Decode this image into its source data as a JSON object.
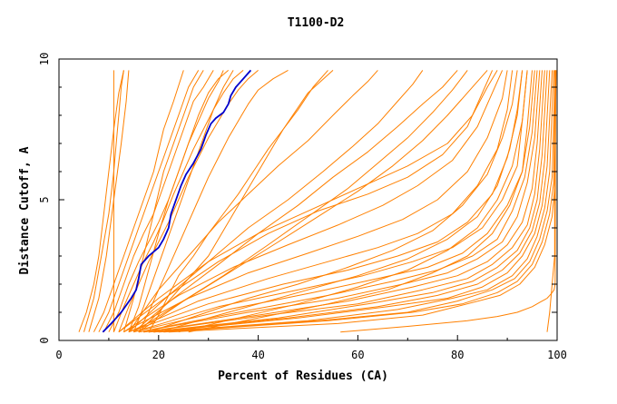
{
  "chart_data": {
    "type": "line",
    "title": "T1100-D2",
    "xlabel": "Percent of Residues (CA)",
    "ylabel": "Distance Cutoff, A",
    "xlim": [
      0,
      100
    ],
    "ylim": [
      0,
      10
    ],
    "x_ticks": [
      0,
      20,
      40,
      60,
      80,
      100
    ],
    "y_ticks": [
      0,
      5,
      10
    ],
    "grid": false,
    "legend": "none",
    "colors": {
      "models": "#ff8000",
      "highlight": "#0000cc"
    },
    "series": [
      {
        "highlight": true,
        "x": [
          8.8,
          10.5,
          12.5,
          14.5,
          15.5,
          16,
          16.5,
          18,
          20,
          21,
          22,
          22.5,
          23.5,
          24.5,
          25.5,
          27,
          28.5,
          29.5,
          30.5,
          31.5,
          33,
          34,
          34.5,
          35.5,
          36.5,
          37.5,
          38.5
        ],
        "y": [
          0.3,
          0.6,
          1.0,
          1.5,
          1.8,
          2.2,
          2.7,
          3.0,
          3.3,
          3.6,
          4.0,
          4.5,
          5.0,
          5.5,
          5.9,
          6.3,
          6.8,
          7.3,
          7.7,
          7.9,
          8.1,
          8.4,
          8.7,
          9.0,
          9.2,
          9.4,
          9.6
        ]
      },
      {
        "x": [
          11,
          11,
          11,
          11,
          11,
          11
        ],
        "y": [
          0.3,
          2,
          4,
          6,
          8,
          9.6
        ]
      },
      {
        "x": [
          4,
          5.5,
          7,
          8,
          9,
          10,
          11,
          12,
          13
        ],
        "y": [
          0.3,
          1.0,
          2.0,
          3.0,
          4.5,
          6.0,
          7.5,
          8.8,
          9.6
        ]
      },
      {
        "x": [
          5,
          7,
          8.5,
          10,
          11,
          11.5,
          12,
          12.5,
          13
        ],
        "y": [
          0.3,
          1.5,
          3.0,
          4.5,
          6.0,
          7.0,
          8.0,
          9.0,
          9.6
        ]
      },
      {
        "x": [
          6,
          8,
          9.5,
          11,
          12.5,
          13.5,
          14
        ],
        "y": [
          0.3,
          1.5,
          3.0,
          5.0,
          7.0,
          8.5,
          9.6
        ]
      },
      {
        "x": [
          7,
          9,
          11,
          13,
          15,
          17,
          19,
          21,
          23,
          25
        ],
        "y": [
          0.3,
          1.0,
          2.0,
          3.0,
          4.0,
          5.0,
          6.0,
          7.5,
          8.5,
          9.6
        ]
      },
      {
        "x": [
          8,
          10,
          12,
          14,
          16,
          18,
          20,
          22,
          24,
          26,
          28
        ],
        "y": [
          0.3,
          1.0,
          2.0,
          3.0,
          4.0,
          5.0,
          6.0,
          7.0,
          8.0,
          9.0,
          9.6
        ]
      },
      {
        "x": [
          9,
          11,
          13,
          15,
          17,
          19,
          21,
          23,
          25,
          27,
          29,
          31
        ],
        "y": [
          0.3,
          1.0,
          2.0,
          3.0,
          3.8,
          4.5,
          5.5,
          6.5,
          7.5,
          8.5,
          9.0,
          9.6
        ]
      },
      {
        "x": [
          10,
          12,
          14,
          16,
          18,
          20,
          22,
          24,
          26,
          28,
          30,
          32,
          34
        ],
        "y": [
          0.3,
          1.0,
          2.0,
          2.8,
          3.5,
          4.2,
          5.0,
          6.0,
          7.0,
          8.0,
          8.8,
          9.3,
          9.6
        ]
      },
      {
        "x": [
          11,
          13,
          15,
          17,
          19,
          21,
          23,
          25,
          27,
          29,
          31,
          33,
          35,
          37
        ],
        "y": [
          0.3,
          1.2,
          2.0,
          2.8,
          3.5,
          4.3,
          5.2,
          6.0,
          6.8,
          7.5,
          8.2,
          8.8,
          9.3,
          9.6
        ]
      },
      {
        "x": [
          12,
          14,
          16,
          18,
          20,
          22,
          24,
          26,
          28,
          30,
          32,
          34,
          36,
          38,
          40
        ],
        "y": [
          0.3,
          1.2,
          2.0,
          2.8,
          3.5,
          4.2,
          5.0,
          5.8,
          6.5,
          7.2,
          7.8,
          8.4,
          8.9,
          9.3,
          9.6
        ]
      },
      {
        "x": [
          13,
          15,
          17,
          19,
          21,
          23,
          25,
          27,
          29
        ],
        "y": [
          0.3,
          1.5,
          3.0,
          4.5,
          6.0,
          7.0,
          8.0,
          9.0,
          9.6
        ]
      },
      {
        "x": [
          14,
          16,
          18,
          20,
          22,
          24,
          26,
          28,
          30,
          32,
          33
        ],
        "y": [
          0.3,
          1.2,
          2.5,
          3.8,
          5.0,
          6.0,
          7.0,
          7.8,
          8.6,
          9.2,
          9.6
        ]
      },
      {
        "x": [
          15,
          17,
          19,
          21,
          23,
          25,
          27,
          29,
          31,
          33,
          35
        ],
        "y": [
          0.3,
          1.2,
          2.2,
          3.2,
          4.2,
          5.2,
          6.2,
          7.2,
          8.2,
          9.0,
          9.6
        ]
      },
      {
        "x": [
          16,
          18,
          20,
          22,
          24,
          26,
          28,
          30,
          32,
          34,
          36,
          38,
          40,
          43,
          46
        ],
        "y": [
          0.3,
          1.0,
          1.8,
          2.6,
          3.4,
          4.2,
          5.0,
          5.8,
          6.5,
          7.2,
          7.8,
          8.4,
          8.9,
          9.3,
          9.6
        ]
      },
      {
        "x": [
          18,
          20,
          22,
          24,
          27,
          30,
          33,
          36,
          39,
          42,
          45,
          48,
          51,
          54
        ],
        "y": [
          0.3,
          0.9,
          1.6,
          2.3,
          3.0,
          3.8,
          4.5,
          5.2,
          6.0,
          6.8,
          7.5,
          8.2,
          9.0,
          9.6
        ]
      },
      {
        "x": [
          16,
          20,
          25,
          30,
          35,
          40,
          45,
          50,
          55
        ],
        "y": [
          0.3,
          1.0,
          2.0,
          3.0,
          4.5,
          6.0,
          7.5,
          8.8,
          9.6
        ]
      },
      {
        "x": [
          12,
          20,
          30,
          40,
          50,
          60,
          70,
          78,
          83,
          86,
          88
        ],
        "y": [
          0.3,
          1.5,
          2.8,
          3.8,
          4.6,
          5.4,
          6.2,
          7.0,
          8.0,
          9.0,
          9.6
        ]
      },
      {
        "x": [
          12,
          22,
          32,
          42,
          52,
          62,
          70,
          77,
          82,
          85,
          87
        ],
        "y": [
          0.3,
          1.6,
          2.8,
          3.8,
          4.6,
          5.2,
          5.8,
          6.6,
          7.6,
          8.8,
          9.6
        ]
      },
      {
        "x": [
          13,
          24,
          35,
          46,
          56,
          65,
          72,
          79,
          84,
          87,
          89
        ],
        "y": [
          0.3,
          1.6,
          2.6,
          3.4,
          4.1,
          4.8,
          5.5,
          6.4,
          7.6,
          8.8,
          9.6
        ]
      },
      {
        "x": [
          13,
          26,
          38,
          50,
          60,
          69,
          76,
          82,
          86,
          89,
          90
        ],
        "y": [
          0.3,
          1.5,
          2.4,
          3.1,
          3.7,
          4.3,
          5.0,
          6.0,
          7.2,
          8.6,
          9.6
        ]
      },
      {
        "x": [
          14,
          28,
          42,
          54,
          64,
          72,
          79,
          84,
          88,
          90,
          91
        ],
        "y": [
          0.3,
          1.4,
          2.2,
          2.8,
          3.3,
          3.8,
          4.5,
          5.5,
          6.8,
          8.2,
          9.6
        ]
      },
      {
        "x": [
          14,
          30,
          45,
          58,
          68,
          76,
          82,
          87,
          90,
          92,
          93
        ],
        "y": [
          0.3,
          1.3,
          2.0,
          2.5,
          3.0,
          3.5,
          4.2,
          5.2,
          6.5,
          8.0,
          9.6
        ]
      },
      {
        "x": [
          15,
          32,
          48,
          61,
          71,
          79,
          85,
          89,
          92,
          93,
          94
        ],
        "y": [
          0.3,
          1.2,
          1.8,
          2.3,
          2.8,
          3.3,
          4.0,
          5.0,
          6.2,
          7.8,
          9.6
        ]
      },
      {
        "x": [
          15,
          34,
          51,
          64,
          74,
          81,
          86,
          90,
          93,
          94,
          95
        ],
        "y": [
          0.3,
          1.1,
          1.7,
          2.2,
          2.6,
          3.1,
          3.8,
          4.8,
          6.0,
          7.6,
          9.6
        ]
      },
      {
        "x": [
          16,
          36,
          54,
          67,
          76,
          83,
          88,
          91,
          93.5,
          95,
          96
        ],
        "y": [
          0.3,
          1.0,
          1.6,
          2.1,
          2.5,
          3.0,
          3.6,
          4.6,
          5.8,
          7.4,
          9.6
        ]
      },
      {
        "x": [
          16,
          38,
          56,
          69,
          78,
          84,
          89,
          92,
          94,
          95.5,
          96.5
        ],
        "y": [
          0.3,
          1.0,
          1.5,
          2.0,
          2.4,
          2.9,
          3.5,
          4.4,
          5.6,
          7.2,
          9.6
        ]
      },
      {
        "x": [
          17,
          40,
          58,
          71,
          80,
          86,
          90,
          93,
          95,
          96,
          97
        ],
        "y": [
          0.3,
          0.9,
          1.4,
          1.9,
          2.3,
          2.8,
          3.4,
          4.2,
          5.4,
          7.0,
          9.6
        ]
      },
      {
        "x": [
          17,
          42,
          60,
          73,
          82,
          87,
          91,
          94,
          95.5,
          96.5,
          97.5
        ],
        "y": [
          0.3,
          0.9,
          1.3,
          1.8,
          2.2,
          2.7,
          3.3,
          4.1,
          5.2,
          6.8,
          9.6
        ]
      },
      {
        "x": [
          18,
          44,
          62,
          75,
          83,
          88,
          92,
          94.5,
          96,
          97,
          98
        ],
        "y": [
          0.3,
          0.8,
          1.3,
          1.7,
          2.1,
          2.6,
          3.2,
          4.0,
          5.0,
          6.6,
          9.6
        ]
      },
      {
        "x": [
          18,
          46,
          64,
          76,
          84,
          89,
          92.5,
          95,
          96.5,
          97.5,
          98.5
        ],
        "y": [
          0.3,
          0.8,
          1.2,
          1.6,
          2.0,
          2.5,
          3.1,
          3.9,
          4.9,
          6.4,
          9.6
        ]
      },
      {
        "x": [
          19,
          48,
          66,
          78,
          85,
          90,
          93,
          95.5,
          97,
          98,
          99
        ],
        "y": [
          0.3,
          0.8,
          1.2,
          1.5,
          1.9,
          2.4,
          3.0,
          3.8,
          4.8,
          6.2,
          9.6
        ]
      },
      {
        "x": [
          19,
          50,
          68,
          79,
          86,
          91,
          94,
          96,
          97.5,
          98.5,
          99.3
        ],
        "y": [
          0.3,
          0.7,
          1.1,
          1.5,
          1.8,
          2.3,
          2.9,
          3.7,
          4.7,
          6.0,
          9.6
        ]
      },
      {
        "x": [
          20,
          52,
          70,
          80,
          87,
          91.5,
          94.5,
          96.5,
          98,
          99,
          99.6
        ],
        "y": [
          0.3,
          0.7,
          1.0,
          1.4,
          1.8,
          2.2,
          2.8,
          3.6,
          4.6,
          5.8,
          9.6
        ]
      },
      {
        "x": [
          21,
          54,
          71,
          81,
          88,
          92,
          95,
          97,
          98.5,
          99.3,
          99.7
        ],
        "y": [
          0.3,
          0.7,
          1.0,
          1.3,
          1.7,
          2.1,
          2.7,
          3.5,
          4.5,
          5.6,
          9.6
        ]
      },
      {
        "x": [
          22,
          56,
          73,
          82,
          88.5,
          92.5,
          95.5,
          97.5,
          99,
          99.5,
          99.8
        ],
        "y": [
          0.3,
          0.6,
          0.9,
          1.3,
          1.6,
          2.0,
          2.6,
          3.4,
          4.4,
          5.4,
          9.6
        ]
      },
      {
        "x": [
          20,
          30,
          40,
          50,
          60,
          70,
          78,
          84,
          88,
          90.5,
          92,
          93
        ],
        "y": [
          0.3,
          0.8,
          1.3,
          1.8,
          2.3,
          2.9,
          3.6,
          4.4,
          5.5,
          6.8,
          8.2,
          9.6
        ]
      },
      {
        "x": [
          18,
          28,
          38,
          48,
          58,
          67,
          75,
          81,
          86,
          89,
          91,
          92
        ],
        "y": [
          0.3,
          0.9,
          1.5,
          2.0,
          2.6,
          3.2,
          3.9,
          4.8,
          5.9,
          7.2,
          8.4,
          9.6
        ]
      },
      {
        "x": [
          24,
          36,
          48,
          60,
          70,
          78,
          84,
          88,
          91,
          93,
          94
        ],
        "y": [
          0.3,
          0.8,
          1.3,
          1.9,
          2.5,
          3.2,
          4.0,
          5.0,
          6.2,
          7.8,
          9.6
        ]
      },
      {
        "x": [
          26,
          40,
          54,
          66,
          75,
          82,
          87,
          90.5,
          93,
          94.5,
          95.5
        ],
        "y": [
          0.3,
          0.8,
          1.3,
          1.8,
          2.4,
          3.0,
          3.8,
          4.8,
          6.0,
          7.6,
          9.6
        ]
      },
      {
        "x": [
          16,
          25,
          35,
          44,
          52,
          60,
          67,
          73,
          78,
          82,
          86
        ],
        "y": [
          0.3,
          1.4,
          2.5,
          3.5,
          4.4,
          5.3,
          6.2,
          7.1,
          8.0,
          8.8,
          9.6
        ]
      },
      {
        "x": [
          15,
          23,
          32,
          40,
          48,
          55,
          62,
          68,
          73,
          77,
          80
        ],
        "y": [
          0.3,
          1.5,
          2.7,
          3.8,
          4.8,
          5.8,
          6.7,
          7.6,
          8.4,
          9.0,
          9.6
        ]
      },
      {
        "x": [
          14,
          22,
          30,
          38,
          46,
          53,
          59,
          64,
          68,
          71,
          73
        ],
        "y": [
          0.3,
          1.6,
          2.8,
          4.0,
          5.0,
          6.0,
          6.9,
          7.7,
          8.5,
          9.1,
          9.6
        ]
      },
      {
        "x": [
          14,
          20,
          26,
          32,
          38,
          44,
          50,
          55,
          59,
          62,
          64
        ],
        "y": [
          0.3,
          1.8,
          3.0,
          4.2,
          5.2,
          6.2,
          7.1,
          8.0,
          8.7,
          9.2,
          9.6
        ]
      },
      {
        "x": [
          15,
          24,
          33,
          42,
          50,
          58,
          64,
          70,
          75,
          79,
          82
        ],
        "y": [
          0.3,
          1.3,
          2.3,
          3.4,
          4.4,
          5.4,
          6.3,
          7.2,
          8.1,
          8.9,
          9.6
        ]
      },
      {
        "x": [
          56.5,
          70,
          82,
          88,
          92,
          95,
          96.5,
          97.5,
          98,
          98.5,
          99,
          99.4,
          99.6,
          99.7
        ],
        "y": [
          0.3,
          0.5,
          0.7,
          0.85,
          1.0,
          1.2,
          1.35,
          1.45,
          1.5,
          1.6,
          1.7,
          1.8,
          2.0,
          9.6
        ]
      },
      {
        "x": [
          98,
          98.5,
          99,
          99.5,
          99.5,
          99.5,
          99.5,
          99.5,
          99.5
        ],
        "y": [
          0.3,
          1.0,
          2.0,
          3.0,
          4.0,
          5.0,
          6.0,
          8.0,
          9.6
        ]
      }
    ]
  }
}
